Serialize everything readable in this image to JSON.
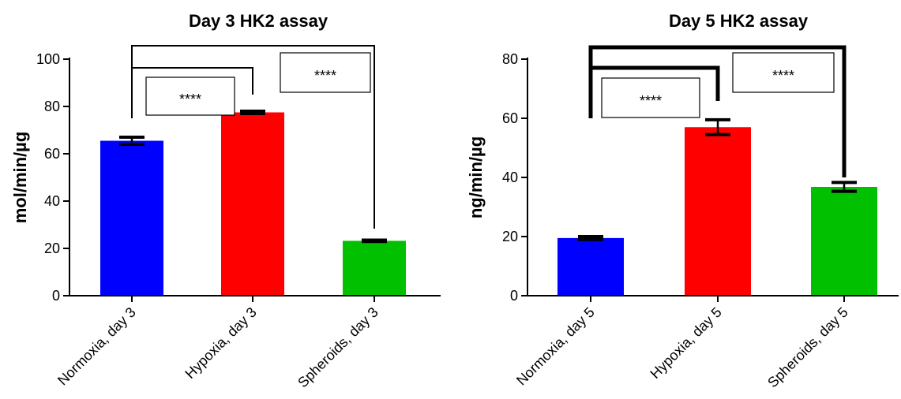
{
  "chart_data": [
    {
      "type": "bar",
      "title": "Day 3 HK2 assay",
      "ylabel": "mol/min/µg",
      "xlabel": "",
      "ylim": [
        0,
        100
      ],
      "yticks": [
        0,
        20,
        40,
        60,
        80,
        100
      ],
      "categories": [
        "Normoxia, day 3",
        "Hypoxia, day 3",
        "Spheroids, day 3"
      ],
      "values": [
        65.5,
        77.5,
        23.2
      ],
      "errors": [
        1.5,
        0.5,
        0.3
      ],
      "colors": [
        "#0000ff",
        "#ff0000",
        "#00c000"
      ],
      "comparisons": [
        {
          "from": 0,
          "to": 1,
          "label": "****"
        },
        {
          "from": 0,
          "to": 2,
          "label": "****"
        }
      ]
    },
    {
      "type": "bar",
      "title": "Day 5 HK2 assay",
      "ylabel": "ng/min/µg",
      "xlabel": "",
      "ylim": [
        0,
        80
      ],
      "yticks": [
        0,
        20,
        40,
        60,
        80
      ],
      "categories": [
        "Normoxia, day 5",
        "Hypoxia, day 5",
        "Spheroids, day 5"
      ],
      "values": [
        19.5,
        57.0,
        36.8
      ],
      "errors": [
        0.5,
        2.5,
        1.5
      ],
      "colors": [
        "#0000ff",
        "#ff0000",
        "#00c000"
      ],
      "comparisons": [
        {
          "from": 0,
          "to": 1,
          "label": "****"
        },
        {
          "from": 0,
          "to": 2,
          "label": "****"
        }
      ]
    }
  ]
}
